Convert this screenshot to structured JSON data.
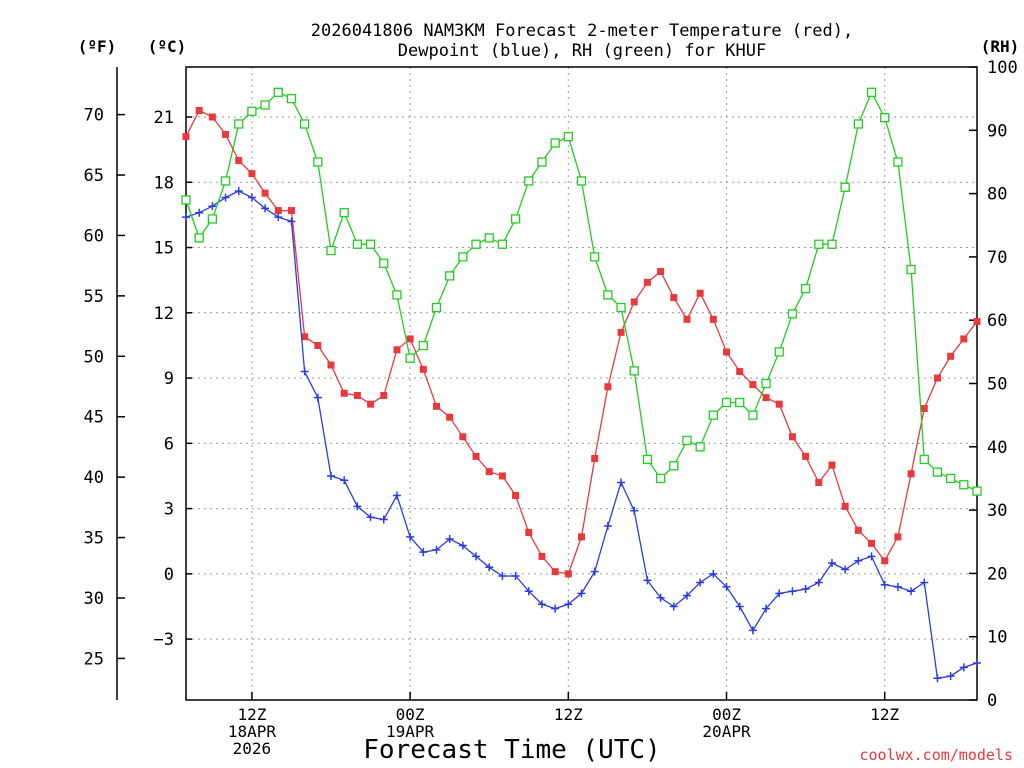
{
  "chart_data": {
    "type": "line",
    "title_line1": "2026041806 NAM3KM Forecast 2-meter Temperature (red),",
    "title_line2": "Dewpoint (blue), RH (green) for KHUF",
    "xlabel": "Forecast Time (UTC)",
    "watermark": "coolwx.com/models",
    "units": {
      "f": "(ºF)",
      "c": "(ºC)",
      "rh": "(RH)"
    },
    "x_range_hours": [
      1,
      61
    ],
    "c_range": [
      -5.8,
      23.3
    ],
    "rh_range": [
      0,
      100
    ],
    "f_ticks": [
      {
        "v": 25,
        "label": "25"
      },
      {
        "v": 30,
        "label": "30"
      },
      {
        "v": 35,
        "label": "35"
      },
      {
        "v": 40,
        "label": "40"
      },
      {
        "v": 45,
        "label": "45"
      },
      {
        "v": 50,
        "label": "50"
      },
      {
        "v": 55,
        "label": "55"
      },
      {
        "v": 60,
        "label": "60"
      },
      {
        "v": 65,
        "label": "65"
      },
      {
        "v": 70,
        "label": "70"
      }
    ],
    "c_ticks": [
      {
        "v": -3,
        "label": "−3"
      },
      {
        "v": 0,
        "label": "0"
      },
      {
        "v": 3,
        "label": "3"
      },
      {
        "v": 6,
        "label": "6"
      },
      {
        "v": 9,
        "label": "9"
      },
      {
        "v": 12,
        "label": "12"
      },
      {
        "v": 15,
        "label": "15"
      },
      {
        "v": 18,
        "label": "18"
      },
      {
        "v": 21,
        "label": "21"
      }
    ],
    "rh_ticks": [
      0,
      10,
      20,
      30,
      40,
      50,
      60,
      70,
      80,
      90,
      100
    ],
    "x_ticks": [
      {
        "h": 6,
        "lines": [
          "12Z",
          "18APR",
          "2026"
        ]
      },
      {
        "h": 18,
        "lines": [
          "00Z",
          "19APR"
        ]
      },
      {
        "h": 30,
        "lines": [
          "12Z"
        ]
      },
      {
        "h": 42,
        "lines": [
          "00Z",
          "20APR"
        ]
      },
      {
        "h": 54,
        "lines": [
          "12Z"
        ]
      }
    ],
    "x_hours": [
      1,
      2,
      3,
      4,
      5,
      6,
      7,
      8,
      9,
      10,
      11,
      12,
      13,
      14,
      15,
      16,
      17,
      18,
      19,
      20,
      21,
      22,
      23,
      24,
      25,
      26,
      27,
      28,
      29,
      30,
      31,
      32,
      33,
      34,
      35,
      36,
      37,
      38,
      39,
      40,
      41,
      42,
      43,
      44,
      45,
      46,
      47,
      48,
      49,
      50,
      51,
      52,
      53,
      54,
      55,
      56,
      57,
      58,
      59,
      60,
      61
    ],
    "series": [
      {
        "name": "Temperature",
        "unit": "C",
        "color": "#e8393d",
        "marker": "square-filled",
        "values": [
          20.1,
          21.3,
          21.0,
          20.2,
          19.0,
          18.4,
          17.5,
          16.7,
          16.7,
          10.9,
          10.5,
          9.6,
          8.3,
          8.2,
          7.8,
          8.2,
          10.3,
          10.8,
          9.4,
          7.7,
          7.2,
          6.3,
          5.4,
          4.7,
          4.5,
          3.6,
          1.9,
          0.8,
          0.1,
          0.0,
          1.7,
          5.3,
          8.6,
          11.1,
          12.5,
          13.4,
          13.9,
          12.7,
          11.7,
          12.9,
          11.7,
          10.2,
          9.3,
          8.7,
          8.1,
          7.8,
          6.3,
          5.4,
          4.2,
          5.0,
          3.1,
          2.0,
          1.4,
          0.6,
          1.7,
          4.6,
          7.6,
          9.0,
          10.0,
          10.8,
          11.6
        ]
      },
      {
        "name": "Dewpoint",
        "unit": "C",
        "color": "#2b3de0",
        "marker": "plus",
        "values": [
          16.4,
          16.6,
          16.9,
          17.3,
          17.6,
          17.3,
          16.8,
          16.4,
          16.2,
          9.3,
          8.1,
          4.5,
          4.3,
          3.1,
          2.6,
          2.5,
          3.6,
          1.7,
          1.0,
          1.1,
          1.6,
          1.3,
          0.8,
          0.3,
          -0.1,
          -0.1,
          -0.8,
          -1.4,
          -1.6,
          -1.4,
          -0.9,
          0.1,
          2.2,
          4.2,
          2.9,
          -0.3,
          -1.1,
          -1.5,
          -1.0,
          -0.4,
          0.0,
          -0.6,
          -1.5,
          -2.6,
          -1.6,
          -0.9,
          -0.8,
          -0.7,
          -0.4,
          0.5,
          0.2,
          0.6,
          0.8,
          -0.5,
          -0.6,
          -0.8,
          -0.4,
          -4.8,
          -4.7,
          -4.3,
          -4.1
        ]
      },
      {
        "name": "RH",
        "unit": "%",
        "color": "#22cc22",
        "marker": "square-open",
        "values": [
          79,
          73,
          76,
          82,
          91,
          93,
          94,
          96,
          95,
          91,
          85,
          71,
          77,
          72,
          72,
          69,
          64,
          54,
          56,
          62,
          67,
          70,
          72,
          73,
          72,
          76,
          82,
          85,
          88,
          89,
          82,
          70,
          64,
          62,
          52,
          38,
          35,
          37,
          41,
          40,
          45,
          47,
          47,
          45,
          50,
          55,
          61,
          65,
          72,
          72,
          81,
          91,
          96,
          92,
          85,
          68,
          38,
          36,
          35,
          34,
          33
        ]
      }
    ]
  }
}
